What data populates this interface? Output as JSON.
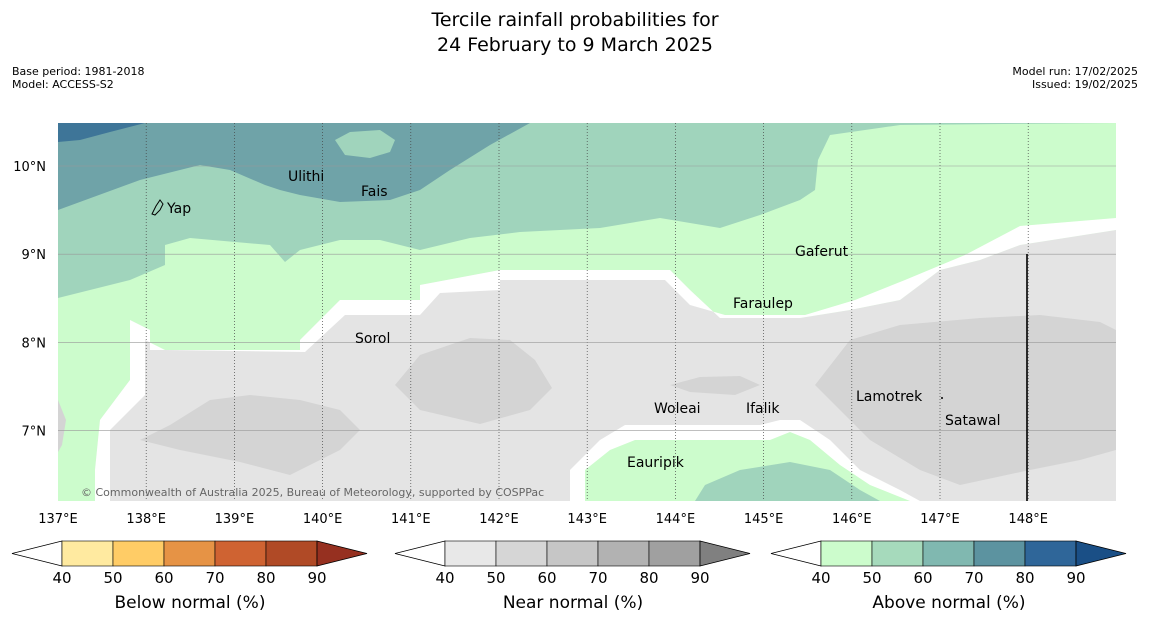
{
  "title": {
    "line1": "Tercile rainfall probabilities for",
    "line2": "24 February to 9 March 2025"
  },
  "meta": {
    "base_period": "Base period: 1981-2018",
    "model": "Model: ACCESS-S2",
    "model_run": "Model run: 17/02/2025",
    "issued": "Issued: 19/02/2025"
  },
  "map": {
    "lon_labels": [
      "137°E",
      "138°E",
      "139°E",
      "140°E",
      "141°E",
      "142°E",
      "143°E",
      "144°E",
      "145°E",
      "146°E",
      "147°E",
      "148°E"
    ],
    "lat_labels": [
      "10°N",
      "9°N",
      "8°N",
      "7°N"
    ],
    "places": [
      {
        "name": "Yap"
      },
      {
        "name": "Ulithi"
      },
      {
        "name": "Fais"
      },
      {
        "name": "Gaferut"
      },
      {
        "name": "Faraulep"
      },
      {
        "name": "Sorol"
      },
      {
        "name": "Lamotrek"
      },
      {
        "name": "Woleai"
      },
      {
        "name": "Ifalik"
      },
      {
        "name": "Satawal"
      },
      {
        "name": "Eauripik"
      }
    ],
    "copyright": "© Commonwealth of Australia 2025, Bureau of Meteorology, supported by COSPPac",
    "colors": {
      "above_50": "#ccfccc",
      "above_60": "#a0d4bc",
      "above_70": "#6fa3a8",
      "above_80": "#3e7598",
      "near_50": "#e4e4e4",
      "near_60": "#d4d4d4",
      "white": "#ffffff"
    }
  },
  "colorbars": [
    {
      "label": "Below normal (%)",
      "ticks": [
        "40",
        "50",
        "60",
        "70",
        "80",
        "90"
      ],
      "colors": [
        "#ffffff",
        "#ffeaa0",
        "#ffcc66",
        "#e69345",
        "#cf6332",
        "#b04a26",
        "#963020"
      ]
    },
    {
      "label": "Near normal (%)",
      "ticks": [
        "40",
        "50",
        "60",
        "70",
        "80",
        "90"
      ],
      "colors": [
        "#ffffff",
        "#e8e8e8",
        "#d6d6d6",
        "#c6c6c6",
        "#b2b2b2",
        "#a0a0a0",
        "#808080"
      ]
    },
    {
      "label": "Above normal (%)",
      "ticks": [
        "40",
        "50",
        "60",
        "70",
        "80",
        "90"
      ],
      "colors": [
        "#ffffff",
        "#ccfccc",
        "#a6dabc",
        "#80b8b0",
        "#5c93a0",
        "#2f6699",
        "#1a4f86"
      ]
    }
  ]
}
